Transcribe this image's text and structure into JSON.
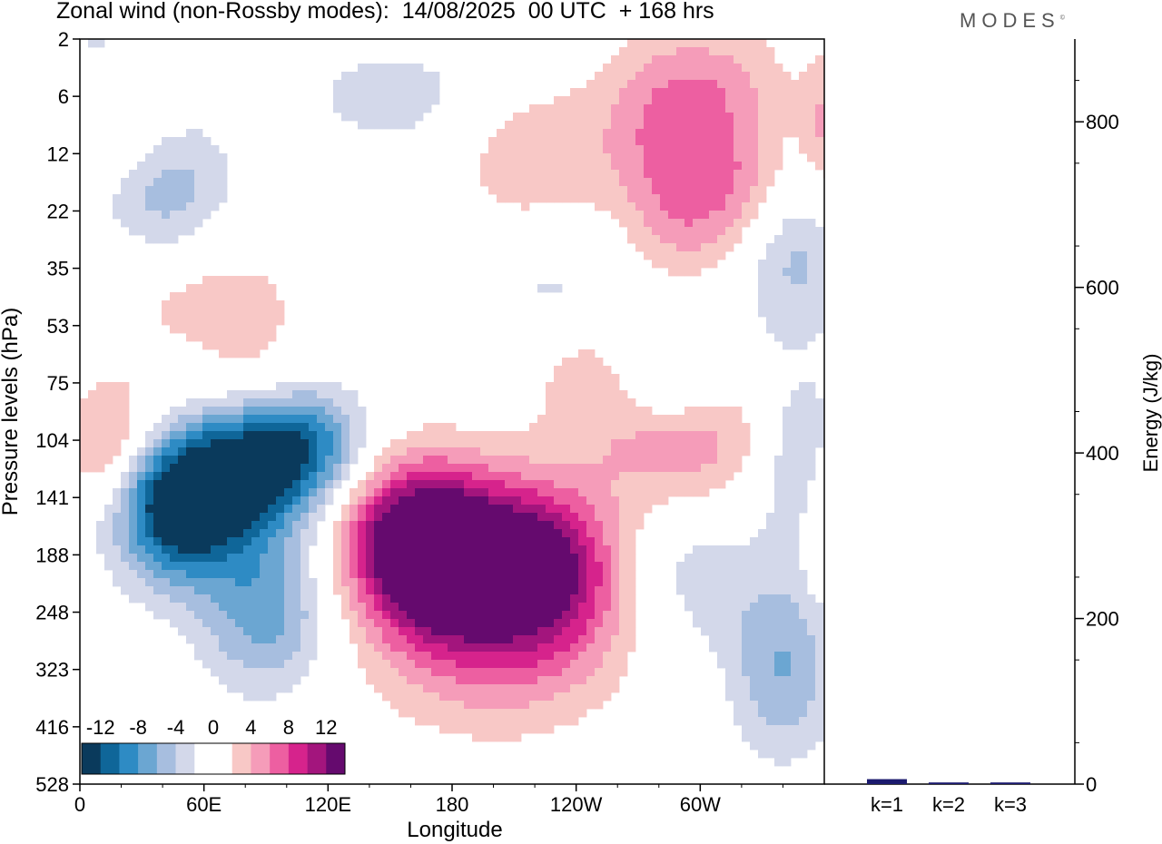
{
  "header": {
    "title": "Zonal wind (non-Rossby modes):  14/08/2025  00 UTC  + 168 hrs",
    "brand": "MODES",
    "brand_mark": "©"
  },
  "chart_data": [
    {
      "type": "heatmap",
      "title": "Zonal wind (non-Rossby modes)",
      "xlabel": "Longitude",
      "ylabel": "Pressure levels (hPa)",
      "x_ticks": [
        "0",
        "60E",
        "120E",
        "180",
        "120W",
        "60W"
      ],
      "x_tick_degrees": [
        0,
        60,
        120,
        180,
        240,
        300
      ],
      "x_range_degrees": [
        0,
        360
      ],
      "y_ticks": [
        2,
        6,
        12,
        22,
        35,
        53,
        75,
        104,
        141,
        188,
        248,
        323,
        416,
        528
      ],
      "y_axis": "reversed, top = 2 hPa, bottom = 528 hPa",
      "colorbar": {
        "placement": "bottom-left inset",
        "labels": [
          "-12",
          "-8",
          "-4",
          "0",
          "4",
          "8",
          "12"
        ],
        "levels": [
          -14,
          -12,
          -10,
          -8,
          -6,
          -4,
          -2,
          0,
          2,
          4,
          6,
          8,
          10,
          12,
          14
        ],
        "colors": [
          "#0a3a5c",
          "#0f6699",
          "#2e8bc4",
          "#6ba6d2",
          "#a7bedf",
          "#d3d8ea",
          "#ffffff",
          "#ffffff",
          "#f8c8c6",
          "#f59cb9",
          "#ed5fa1",
          "#d6238c",
          "#a3157d",
          "#650a6e"
        ]
      },
      "blobs": [
        {
          "lon": 48,
          "p": 141,
          "lon_w": 30,
          "p_w": 2.2,
          "value": -15,
          "note": "strong easterly core"
        },
        {
          "lon": 80,
          "p": 120,
          "lon_w": 40,
          "p_w": 2.0,
          "value": -10
        },
        {
          "lon": 105,
          "p": 104,
          "lon_w": 30,
          "p_w": 1.6,
          "value": -8
        },
        {
          "lon": 90,
          "p": 248,
          "lon_w": 30,
          "p_w": 2.2,
          "value": -7
        },
        {
          "lon": 40,
          "p": 16,
          "lon_w": 30,
          "p_w": 2.2,
          "value": -6
        },
        {
          "lon": 12,
          "p": 4,
          "lon_w": 30,
          "p_w": 2.0,
          "value": -4
        },
        {
          "lon": 155,
          "p": 6,
          "lon_w": 50,
          "p_w": 1.6,
          "value": -3
        },
        {
          "lon": 230,
          "p": 41,
          "lon_w": 40,
          "p_w": 1.6,
          "value": -2.5
        },
        {
          "lon": 345,
          "p": 30,
          "lon_w": 25,
          "p_w": 2.5,
          "value": -5
        },
        {
          "lon": 350,
          "p": 116,
          "lon_w": 20,
          "p_w": 2.2,
          "value": -5
        },
        {
          "lon": 340,
          "p": 320,
          "lon_w": 25,
          "p_w": 2.5,
          "value": -6
        },
        {
          "lon": 300,
          "p": 210,
          "lon_w": 30,
          "p_w": 2.0,
          "value": -3
        },
        {
          "lon": 285,
          "p": 75,
          "lon_w": 25,
          "p_w": 1.6,
          "value": -4
        },
        {
          "lon": 175,
          "p": 188,
          "lon_w": 30,
          "p_w": 2.2,
          "value": 12
        },
        {
          "lon": 150,
          "p": 170,
          "lon_w": 30,
          "p_w": 2.2,
          "value": 8
        },
        {
          "lon": 205,
          "p": 200,
          "lon_w": 40,
          "p_w": 2.5,
          "value": 9
        },
        {
          "lon": 230,
          "p": 200,
          "lon_w": 30,
          "p_w": 2.2,
          "value": 7
        },
        {
          "lon": 200,
          "p": 300,
          "lon_w": 60,
          "p_w": 2.5,
          "value": 4
        },
        {
          "lon": 15,
          "p": 108,
          "lon_w": 20,
          "p_w": 1.8,
          "value": 6
        },
        {
          "lon": 45,
          "p": 104,
          "lon_w": 25,
          "p_w": 1.6,
          "value": 5
        },
        {
          "lon": 85,
          "p": 80,
          "lon_w": 30,
          "p_w": 1.6,
          "value": 4
        },
        {
          "lon": 60,
          "p": 43,
          "lon_w": 50,
          "p_w": 1.8,
          "value": 3
        },
        {
          "lon": 20,
          "p": 8,
          "lon_w": 30,
          "p_w": 1.8,
          "value": 6
        },
        {
          "lon": 215,
          "p": 12,
          "lon_w": 35,
          "p_w": 2.2,
          "value": 3.5
        },
        {
          "lon": 280,
          "p": 12,
          "lon_w": 30,
          "p_w": 2.0,
          "value": 4
        },
        {
          "lon": 300,
          "p": 5,
          "lon_w": 40,
          "p_w": 1.8,
          "value": 5
        },
        {
          "lon": 320,
          "p": 17,
          "lon_w": 30,
          "p_w": 1.8,
          "value": 5
        },
        {
          "lon": 290,
          "p": 26,
          "lon_w": 25,
          "p_w": 1.8,
          "value": 3
        },
        {
          "lon": 290,
          "p": 104,
          "lon_w": 40,
          "p_w": 1.8,
          "value": 6
        },
        {
          "lon": 245,
          "p": 70,
          "lon_w": 25,
          "p_w": 1.6,
          "value": 3
        },
        {
          "lon": 360,
          "p": 150,
          "lon_w": 10,
          "p_w": 2.0,
          "value": 4
        },
        {
          "lon": 360,
          "p": 9,
          "lon_w": 10,
          "p_w": 2.0,
          "value": 4
        }
      ]
    },
    {
      "type": "bar",
      "ylabel": "Energy (J/kg)",
      "categories": [
        "k=1",
        "k=2",
        "k=3"
      ],
      "values": [
        6,
        2,
        2
      ],
      "ylim": [
        0,
        900
      ],
      "y_ticks": [
        0,
        200,
        400,
        600,
        800
      ],
      "bar_color": "#1b1a6e"
    }
  ]
}
